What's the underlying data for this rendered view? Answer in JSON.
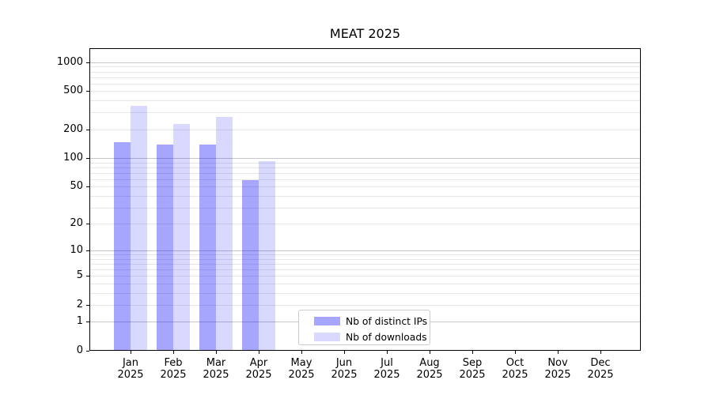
{
  "chart_data": {
    "type": "bar",
    "title": "MEAT 2025",
    "categories": [
      "Jan",
      "Feb",
      "Mar",
      "Apr",
      "May",
      "Jun",
      "Jul",
      "Aug",
      "Sep",
      "Oct",
      "Nov",
      "Dec"
    ],
    "x_tick_year": "2025",
    "series": [
      {
        "name": "Nb of distinct IPs",
        "values": [
          147,
          139,
          139,
          59,
          0,
          0,
          0,
          0,
          0,
          0,
          0,
          0
        ]
      },
      {
        "name": "Nb of downloads",
        "values": [
          351,
          228,
          269,
          93,
          0,
          0,
          0,
          0,
          0,
          0,
          0,
          0
        ]
      }
    ],
    "y_ticks": [
      1000,
      500,
      200,
      100,
      50,
      20,
      10,
      5,
      2,
      1,
      0
    ],
    "scale": "log1p",
    "ylim": [
      0,
      1400
    ],
    "grid": "both",
    "legend_position": "lower-center"
  },
  "colors": {
    "bar_base": "#0000ff",
    "ips_alpha": 0.35,
    "downloads_alpha": 0.15,
    "grid_major": "#c6c6c6",
    "grid_minor": "#e7e7e7",
    "spine": "#000000",
    "text": "#000000",
    "legend_border": "#cccccc",
    "background": "#ffffff"
  }
}
